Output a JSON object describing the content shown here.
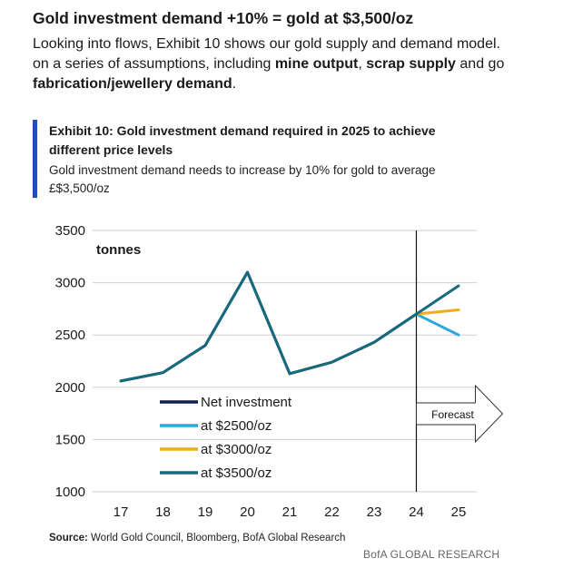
{
  "headline": "Gold investment demand +10% = gold at $3,500/oz",
  "intro": {
    "line1": "Looking into flows, Exhibit 10 shows our gold supply and demand model.",
    "line2_pre": "on a series of assumptions, including ",
    "line2_b1": "mine output",
    "line2_mid1": ", ",
    "line2_b2": "scrap supply",
    "line2_mid2": " and go",
    "line3_b": "fabrication/jewellery demand",
    "line3_post": "."
  },
  "exhibit": {
    "title_line1": "Exhibit 10: Gold investment demand required in 2025 to achieve",
    "title_line2": "different price levels",
    "subtitle_line1": "Gold investment demand needs to increase by 10% for gold to average",
    "subtitle_line2": "£$3,500/oz"
  },
  "chart_data": {
    "type": "line",
    "unit_label": "tonnes",
    "categories": [
      "17",
      "18",
      "19",
      "20",
      "21",
      "22",
      "23",
      "24",
      "25"
    ],
    "ylim": [
      1000,
      3500
    ],
    "yticks": [
      1000,
      1500,
      2000,
      2500,
      3000,
      3500
    ],
    "grid": true,
    "forecast_start": "24",
    "forecast_label": "Forecast",
    "series": [
      {
        "name": "Net investment",
        "color": "#0d1f4f",
        "values": [
          2060,
          2140,
          2400,
          3100,
          2130,
          2240,
          2430,
          2700,
          null
        ]
      },
      {
        "name": "at $2500/oz",
        "color": "#2aa7dc",
        "values": [
          null,
          null,
          null,
          null,
          null,
          null,
          null,
          2700,
          2500
        ]
      },
      {
        "name": "at $3000/oz",
        "color": "#f0ac1a",
        "values": [
          null,
          null,
          null,
          null,
          null,
          null,
          null,
          2700,
          2740
        ]
      },
      {
        "name": "at $3500/oz",
        "color": "#166a7c",
        "values": [
          2060,
          2140,
          2400,
          3100,
          2130,
          2240,
          2430,
          2700,
          2970
        ]
      }
    ],
    "legend_position": "bottom-left"
  },
  "source": {
    "label": "Source:",
    "text": " World Gold Council, Bloomberg, BofA Global Research"
  },
  "brand": "BofA GLOBAL RESEARCH"
}
